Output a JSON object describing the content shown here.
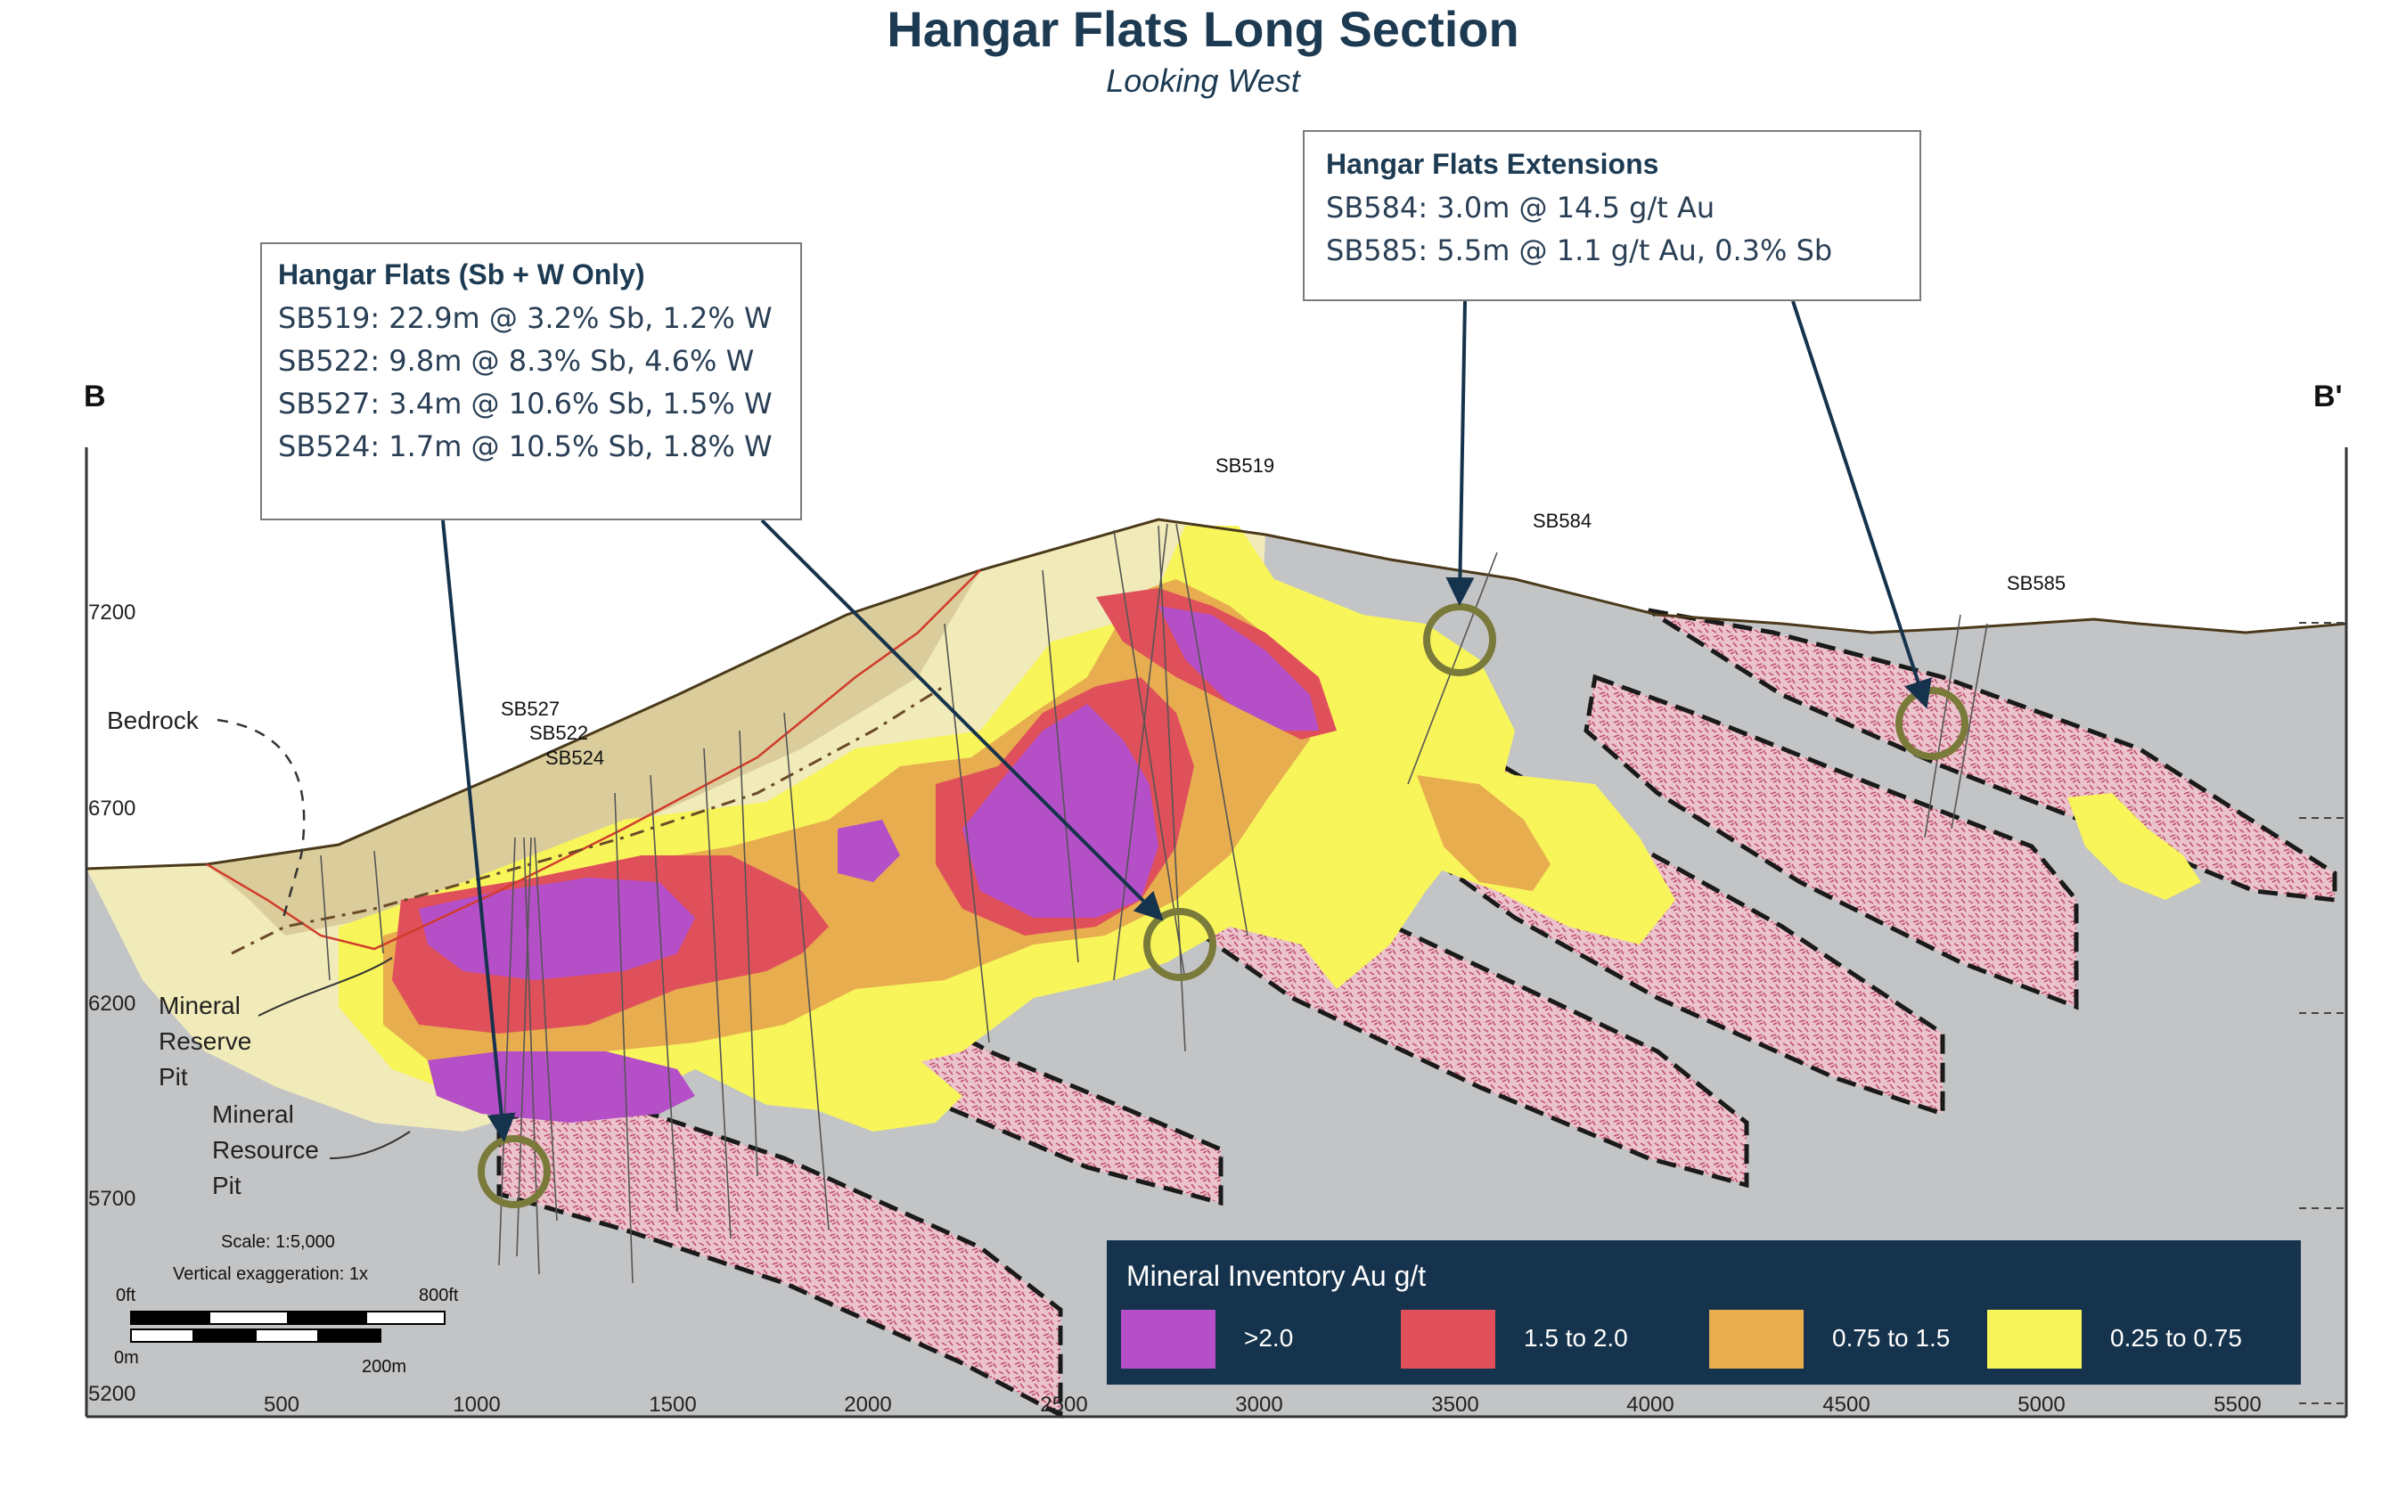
{
  "title": "Hangar Flats Long Section",
  "subtitle": "Looking West",
  "section_labels": {
    "start": "B",
    "end": "B'"
  },
  "callouts": {
    "left": {
      "heading": "Hangar Flats (Sb + W Only)",
      "lines": [
        "SB519: 22.9m @ 3.2% Sb, 1.2% W",
        "SB522: 9.8m @ 8.3% Sb, 4.6% W",
        "SB527: 3.4m @ 10.6% Sb, 1.5% W",
        "SB524: 1.7m @ 10.5% Sb, 1.8% W"
      ]
    },
    "right": {
      "heading": "Hangar Flats Extensions",
      "lines": [
        "SB584: 3.0m @ 14.5 g/t Au",
        "SB585: 5.5m @ 1.1 g/t Au, 0.3% Sb"
      ]
    }
  },
  "drillholes": {
    "sb519": "SB519",
    "sb527": "SB527",
    "sb522": "SB522",
    "sb524": "SB524",
    "sb584": "SB584",
    "sb585": "SB585"
  },
  "annotations": {
    "bedrock": "Bedrock",
    "mineral_reserve_pit": [
      "Mineral",
      "Reserve",
      "Pit"
    ],
    "mineral_resource_pit": [
      "Mineral",
      "Resource",
      "Pit"
    ]
  },
  "scale": {
    "scale_text": "Scale: 1:5,000",
    "exaggeration_text": "Vertical exaggeration: 1x",
    "ft_start": "0ft",
    "ft_end": "800ft",
    "m_start": "0m",
    "m_end": "200m"
  },
  "elevation_ticks": [
    "7200",
    "6700",
    "6200",
    "5700",
    "5200"
  ],
  "distance_ticks": [
    "500",
    "1000",
    "1500",
    "2000",
    "2500",
    "3000",
    "3500",
    "4000",
    "4500",
    "5000",
    "5500"
  ],
  "legend": {
    "title": "Mineral Inventory Au g/t",
    "items": [
      {
        "label": ">2.0",
        "color": "#b44fc8"
      },
      {
        "label": "1.5 to 2.0",
        "color": "#e0505a"
      },
      {
        "label": "0.75 to 1.5",
        "color": "#e8ad4f"
      },
      {
        "label": "0.25 to 0.75",
        "color": "#f7f55a"
      }
    ]
  },
  "colors": {
    "title": "#1c3a52",
    "bedrock": "#c3c4c6",
    "overburden": "#f1eab9",
    "reserve_pit_zone": "#d8c996",
    "host_band": "#e7b8c3",
    "legend_bg": "#16334d",
    "arrow": "#16334d"
  }
}
